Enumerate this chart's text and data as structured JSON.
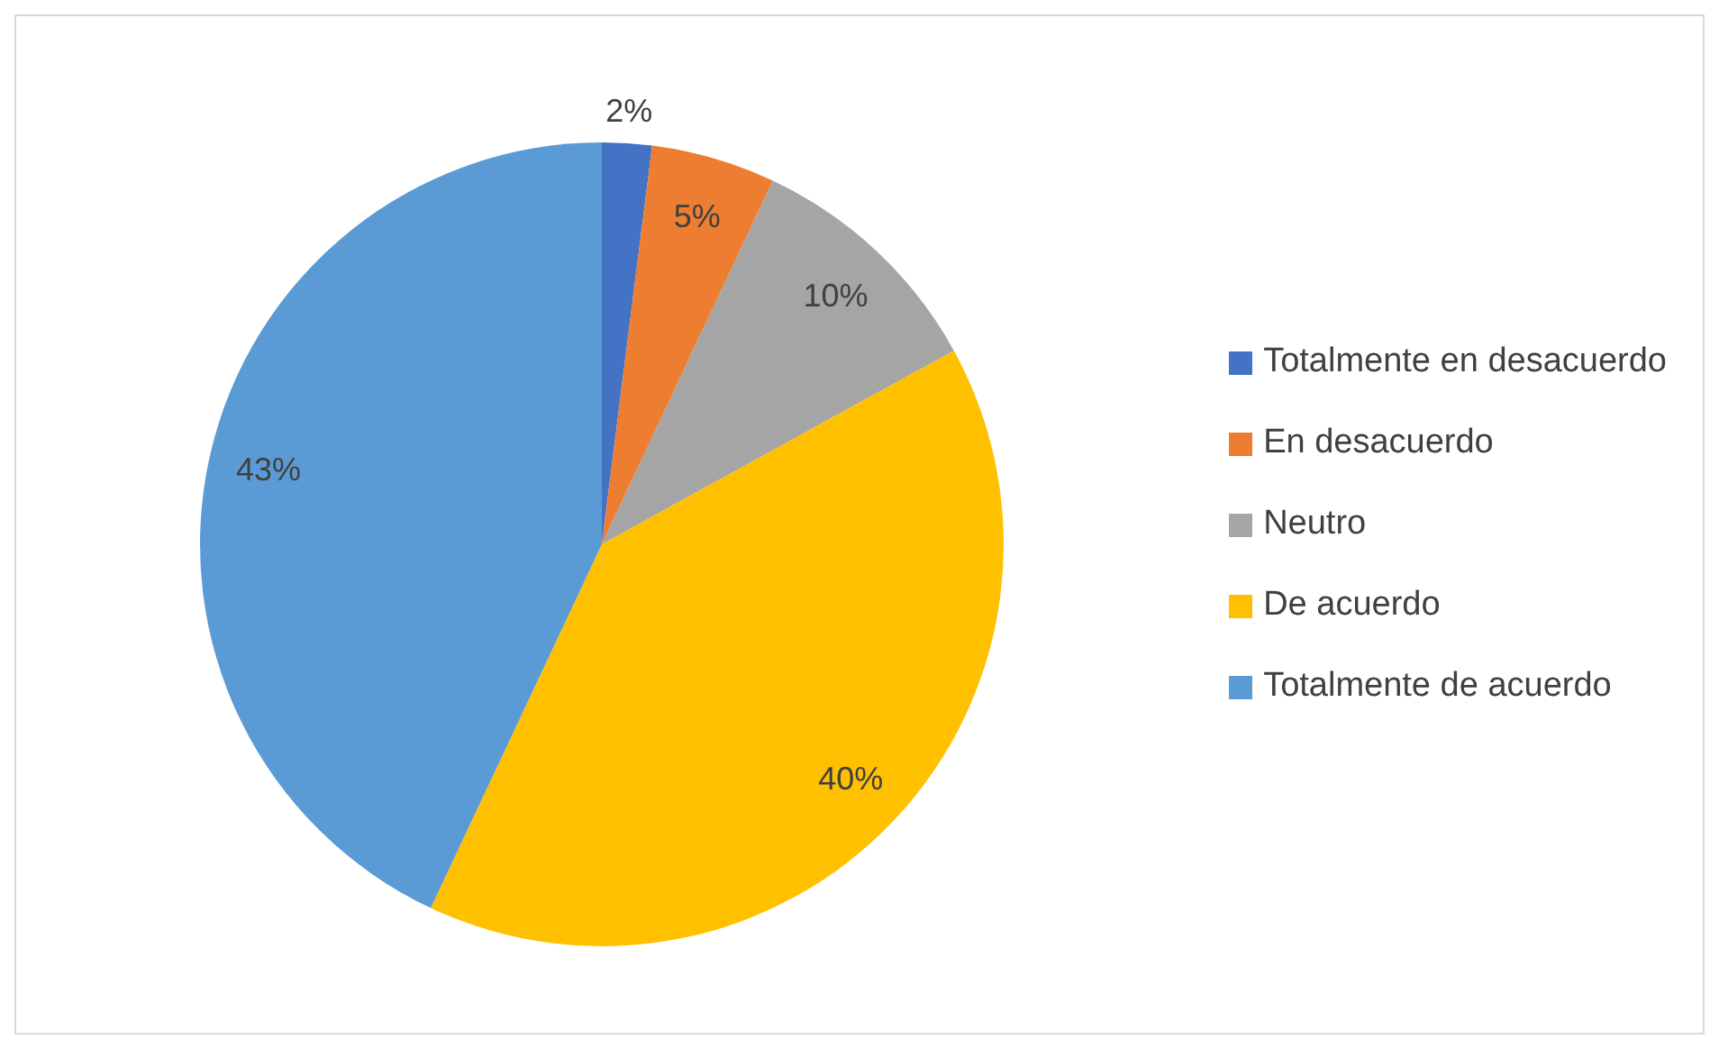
{
  "chart_data": {
    "type": "pie",
    "categories": [
      "Totalmente en desacuerdo",
      "En desacuerdo",
      "Neutro",
      "De acuerdo",
      "Totalmente de acuerdo"
    ],
    "values": [
      2,
      5,
      10,
      40,
      43
    ],
    "colors": [
      "#4472c4",
      "#ed7d31",
      "#a5a5a5",
      "#ffc000",
      "#5b9bd5"
    ],
    "value_labels": [
      "2%",
      "5%",
      "10%",
      "40%",
      "43%"
    ],
    "legend": "right"
  }
}
